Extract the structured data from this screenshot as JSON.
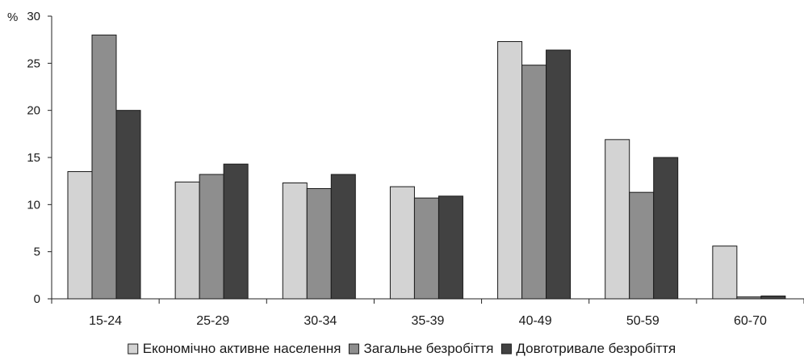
{
  "chart_data": {
    "type": "bar",
    "ylabel": "%",
    "ylim": [
      0,
      30
    ],
    "yticks": [
      0,
      5,
      10,
      15,
      20,
      25,
      30
    ],
    "categories": [
      "15-24",
      "25-29",
      "30-34",
      "35-39",
      "40-49",
      "50-59",
      "60-70"
    ],
    "series": [
      {
        "name": "Економічно активне населення",
        "color": "#d3d3d3",
        "values": [
          13.5,
          12.4,
          12.3,
          11.9,
          27.3,
          16.9,
          5.6
        ]
      },
      {
        "name": "Загальне безробіття",
        "color": "#8e8e8e",
        "values": [
          28.0,
          13.2,
          11.7,
          10.7,
          24.8,
          11.3,
          0.2
        ]
      },
      {
        "name": "Довготривале безробіття",
        "color": "#424242",
        "values": [
          20.0,
          14.3,
          13.2,
          10.9,
          26.4,
          15.0,
          0.3
        ]
      }
    ],
    "legend_position": "bottom",
    "grid": false
  }
}
